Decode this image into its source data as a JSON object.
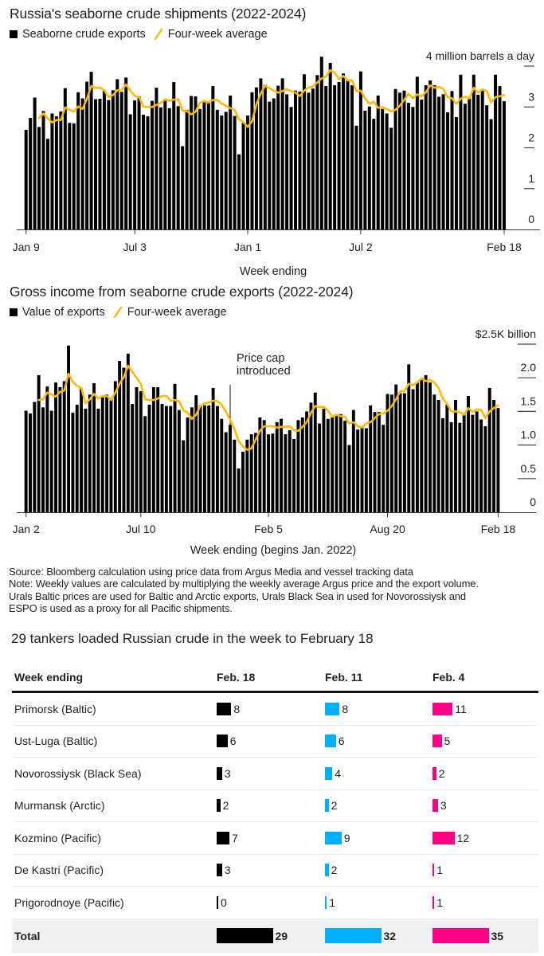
{
  "chart_data": [
    {
      "type": "bar",
      "title": "Russia's seaborne crude shipments (2022-2024)",
      "xlabel": "Week ending",
      "ylabel": "4 million barrels a day",
      "ylim": [
        0,
        4
      ],
      "grid": false,
      "legend_position": "top-left",
      "legend": [
        {
          "label": "Seaborne crude exports",
          "type": "bar",
          "color": "#000000"
        },
        {
          "label": "Four-week average",
          "type": "line",
          "color": "#FFB900"
        }
      ],
      "x_ticks": [
        {
          "label": "Jan 9",
          "index": 0
        },
        {
          "label": "Jul 3",
          "index": 25
        },
        {
          "label": "Jan 1",
          "index": 51
        },
        {
          "label": "Jul 2",
          "index": 77
        },
        {
          "label": "Feb 18",
          "index": 110
        }
      ],
      "y_ticks": [
        {
          "value": 0,
          "label": "0"
        },
        {
          "value": 1,
          "label": "1"
        },
        {
          "value": 2,
          "label": "2"
        },
        {
          "value": 3,
          "label": "3"
        },
        {
          "value": 4,
          "label": "4 million barrels a day"
        }
      ],
      "series": [
        {
          "name": "Seaborne crude exports",
          "type": "bar",
          "color": "#000000",
          "values": [
            2.44,
            2.73,
            3.23,
            2.51,
            2.9,
            2.22,
            2.84,
            2.77,
            2.89,
            3.46,
            2.61,
            2.6,
            3.36,
            3.21,
            3.62,
            3.86,
            3.19,
            3.2,
            3.39,
            3.17,
            3.41,
            3.68,
            3.37,
            3.72,
            2.82,
            3.16,
            3.26,
            2.81,
            2.77,
            3.15,
            3.47,
            2.99,
            3.15,
            2.97,
            3.61,
            3.02,
            2.04,
            2.93,
            3.27,
            3.26,
            2.95,
            3.12,
            3.1,
            3.51,
            2.93,
            2.79,
            2.88,
            3.28,
            2.78,
            1.84,
            2.61,
            2.79,
            3.36,
            3.48,
            3.7,
            3.54,
            3.13,
            3.21,
            3.52,
            3.7,
            3.31,
            3.0,
            3.4,
            3.38,
            3.8,
            3.35,
            3.45,
            3.78,
            4.23,
            3.51,
            4.08,
            3.53,
            3.61,
            3.82,
            3.65,
            3.53,
            2.54,
            3.87,
            2.91,
            3.01,
            2.71,
            3.28,
            2.95,
            2.84,
            2.49,
            3.44,
            3.35,
            3.4,
            3.1,
            3.0,
            3.74,
            3.18,
            3.53,
            3.65,
            3.53,
            3.25,
            3.31,
            2.87,
            3.39,
            2.75,
            3.79,
            3.08,
            3.21,
            3.79,
            3.3,
            3.41,
            3.04,
            2.7,
            3.79,
            3.51,
            3.14
          ]
        },
        {
          "name": "Four-week average",
          "type": "line",
          "color": "#FFB900",
          "start_index": 3,
          "values": [
            2.73,
            2.84,
            2.72,
            2.62,
            2.68,
            2.68,
            2.99,
            2.93,
            2.89,
            3.01,
            2.95,
            3.2,
            3.51,
            3.47,
            3.47,
            3.41,
            3.24,
            3.29,
            3.41,
            3.41,
            3.55,
            3.4,
            3.27,
            3.24,
            3.01,
            3.0,
            3.0,
            3.05,
            3.1,
            3.19,
            3.15,
            3.18,
            3.19,
            2.91,
            2.9,
            2.82,
            2.88,
            3.1,
            3.15,
            3.11,
            3.17,
            3.17,
            3.08,
            3.03,
            2.97,
            2.93,
            2.7,
            2.63,
            2.51,
            2.65,
            3.06,
            3.33,
            3.52,
            3.46,
            3.4,
            3.35,
            3.39,
            3.44,
            3.38,
            3.35,
            3.27,
            3.4,
            3.48,
            3.5,
            3.6,
            3.7,
            3.74,
            3.9,
            3.84,
            3.68,
            3.76,
            3.65,
            3.65,
            3.39,
            3.4,
            3.21,
            3.08,
            3.13,
            2.98,
            2.99,
            2.95,
            2.89,
            2.93,
            3.03,
            3.17,
            3.32,
            3.21,
            3.31,
            3.26,
            3.36,
            3.53,
            3.47,
            3.49,
            3.44,
            3.24,
            3.21,
            3.08,
            3.2,
            3.25,
            3.21,
            3.47,
            3.35,
            3.43,
            3.39,
            3.11,
            3.24,
            3.26,
            3.29
          ]
        }
      ],
      "annotations": []
    },
    {
      "type": "bar",
      "title": "Gross income from seaborne crude exports (2022-2024)",
      "xlabel": "Week ending (begins Jan. 2022)",
      "ylabel": "$2.5K billion",
      "ylim": [
        0,
        2.5
      ],
      "grid": false,
      "legend_position": "top-left",
      "legend": [
        {
          "label": "Value of exports",
          "type": "bar",
          "color": "#000000"
        },
        {
          "label": "Four-week average",
          "type": "line",
          "color": "#FFB900"
        }
      ],
      "x_ticks": [
        {
          "label": "Jan 2",
          "index": 0
        },
        {
          "label": "Jul 10",
          "index": 27
        },
        {
          "label": "Feb 5",
          "index": 57
        },
        {
          "label": "Aug 20",
          "index": 85
        },
        {
          "label": "Feb 18",
          "index": 111
        }
      ],
      "y_ticks": [
        {
          "value": 0,
          "label": "0"
        },
        {
          "value": 0.5,
          "label": "0.5"
        },
        {
          "value": 1.0,
          "label": "1.0"
        },
        {
          "value": 1.5,
          "label": "1.5"
        },
        {
          "value": 2.0,
          "label": "2.0"
        },
        {
          "value": 2.5,
          "label": "$2.5K billion"
        }
      ],
      "series": [
        {
          "name": "Value of exports",
          "type": "bar",
          "color": "#000000",
          "values": [
            1.51,
            1.47,
            1.64,
            2.04,
            1.56,
            1.87,
            1.51,
            1.93,
            1.86,
            1.95,
            2.48,
            1.48,
            1.6,
            1.84,
            1.54,
            1.75,
            1.92,
            1.54,
            1.71,
            1.75,
            1.69,
            1.95,
            2.25,
            2.15,
            2.36,
            1.61,
            1.86,
            1.8,
            1.43,
            1.6,
            1.86,
            1.86,
            1.61,
            1.58,
            1.58,
            1.91,
            1.52,
            1.07,
            1.41,
            1.56,
            1.74,
            1.59,
            1.59,
            1.59,
            1.85,
            1.58,
            1.39,
            1.19,
            1.3,
            1.08,
            0.65,
            0.9,
            1.08,
            1.16,
            1.18,
            1.41,
            1.37,
            1.16,
            1.17,
            1.34,
            1.39,
            1.16,
            1.22,
            1.09,
            1.37,
            1.41,
            1.5,
            1.63,
            1.78,
            1.32,
            1.54,
            1.39,
            1.41,
            1.46,
            1.46,
            1.36,
            1.0,
            1.52,
            1.23,
            1.28,
            1.25,
            1.59,
            1.49,
            1.49,
            1.3,
            1.76,
            1.75,
            1.9,
            1.77,
            1.77,
            2.2,
            1.83,
            1.93,
            1.98,
            2.04,
            1.93,
            1.75,
            1.67,
            1.4,
            1.6,
            1.34,
            1.67,
            1.33,
            1.45,
            1.73,
            1.45,
            1.5,
            1.38,
            1.28,
            1.85,
            1.67,
            1.55
          ]
        },
        {
          "name": "Four-week average",
          "type": "line",
          "color": "#FFB900",
          "start_index": 3,
          "values": [
            1.67,
            1.68,
            1.78,
            1.75,
            1.72,
            1.79,
            1.81,
            2.06,
            1.94,
            1.88,
            1.85,
            1.62,
            1.68,
            1.76,
            1.69,
            1.73,
            1.73,
            1.67,
            1.78,
            1.91,
            2.01,
            2.18,
            2.09,
            2.0,
            1.91,
            1.68,
            1.67,
            1.67,
            1.69,
            1.73,
            1.73,
            1.66,
            1.67,
            1.65,
            1.52,
            1.48,
            1.39,
            1.45,
            1.58,
            1.62,
            1.63,
            1.66,
            1.65,
            1.6,
            1.5,
            1.37,
            1.24,
            1.06,
            0.98,
            0.93,
            0.95,
            1.08,
            1.21,
            1.28,
            1.28,
            1.28,
            1.26,
            1.27,
            1.27,
            1.28,
            1.22,
            1.21,
            1.27,
            1.34,
            1.48,
            1.58,
            1.56,
            1.57,
            1.51,
            1.42,
            1.45,
            1.43,
            1.42,
            1.32,
            1.34,
            1.28,
            1.26,
            1.32,
            1.34,
            1.4,
            1.46,
            1.47,
            1.51,
            1.58,
            1.68,
            1.8,
            1.8,
            1.91,
            1.89,
            1.93,
            1.99,
            1.95,
            1.97,
            1.93,
            1.85,
            1.69,
            1.61,
            1.5,
            1.5,
            1.49,
            1.45,
            1.55,
            1.49,
            1.53,
            1.52,
            1.4,
            1.5,
            1.55,
            1.59
          ]
        }
      ],
      "annotations": [
        {
          "index": 48,
          "lines": [
            "Price cap",
            "introduced"
          ]
        }
      ]
    }
  ],
  "notes": {
    "source": "Source: Bloomberg calculation using price data from Argus Media and vessel tracking data",
    "note_lines": [
      "Note: Weekly values are calculated by multiplying the weekly average Argus price and the export volume.",
      "Urals Baltic prices are used for Baltic and Arctic exports, Urals Black Sea in used for Novorossiysk and",
      "ESPO is used as a proxy for all Pacific shipments."
    ]
  },
  "table": {
    "title": "29 tankers loaded Russian crude in the week to February 18",
    "header": [
      "Week ending",
      "Feb. 18",
      "Feb. 11",
      "Feb. 4"
    ],
    "column_colors": [
      "#000000",
      "#00AEFF",
      "#FF0086"
    ],
    "rows": [
      {
        "port": "Primorsk (Baltic)",
        "values": [
          8,
          8,
          11
        ]
      },
      {
        "port": "Ust-Luga (Baltic)",
        "values": [
          6,
          6,
          5
        ]
      },
      {
        "port": "Novorossiysk (Black Sea)",
        "values": [
          3,
          4,
          2
        ]
      },
      {
        "port": "Murmansk (Arctic)",
        "values": [
          2,
          2,
          3
        ]
      },
      {
        "port": "Kozmino (Pacific)",
        "values": [
          7,
          9,
          12
        ]
      },
      {
        "port": "De Kastri (Pacific)",
        "values": [
          3,
          2,
          1
        ]
      },
      {
        "port": "Prigorodnoye (Pacific)",
        "values": [
          0,
          1,
          1
        ]
      }
    ],
    "total": {
      "label": "Total",
      "values": [
        29,
        32,
        35
      ]
    }
  }
}
